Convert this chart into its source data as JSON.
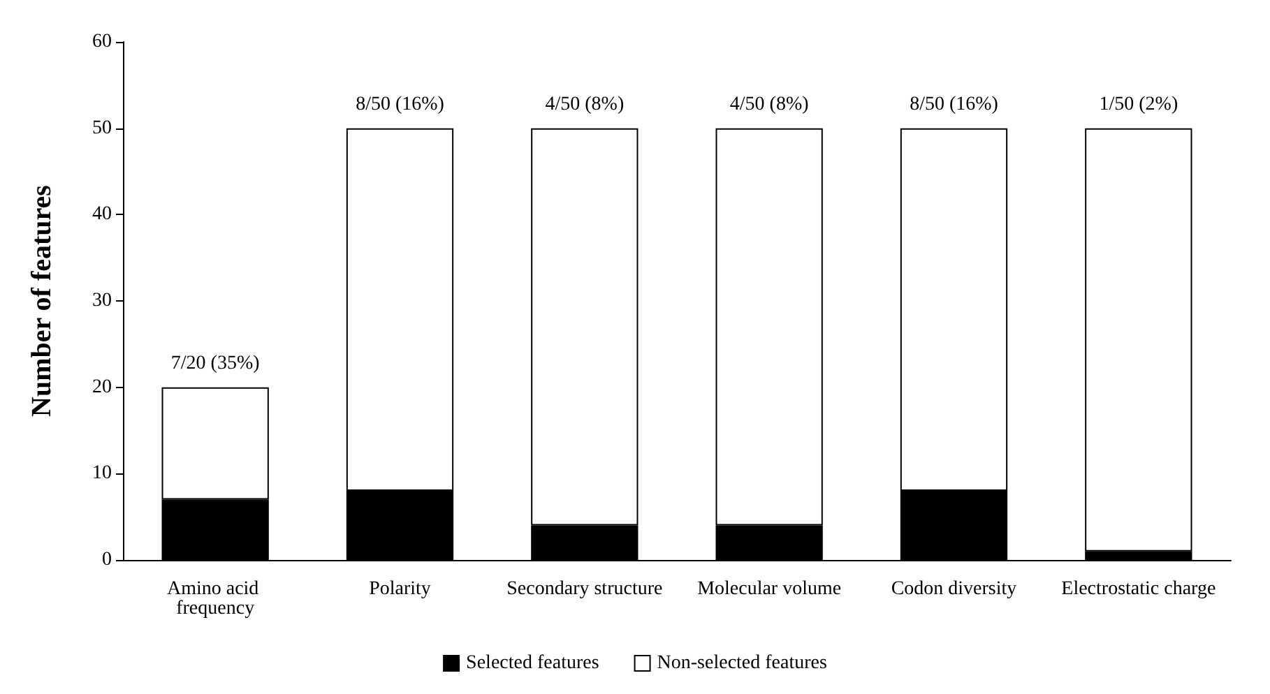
{
  "chart_data": {
    "type": "bar",
    "ylabel": "Number of features",
    "categories": [
      "Amino acid frequency",
      "Polarity",
      "Secondary structure",
      "Molecular volume",
      "Codon diversity",
      "Electrostatic charge"
    ],
    "series": [
      {
        "name": "Selected features",
        "color": "#000000",
        "values": [
          7,
          8,
          4,
          4,
          8,
          1
        ]
      },
      {
        "name": "Non-selected features",
        "color": "#ffffff",
        "values": [
          13,
          42,
          46,
          46,
          42,
          49
        ]
      }
    ],
    "stacked": true,
    "ylim": [
      0,
      60
    ],
    "yticks": [
      0,
      10,
      20,
      30,
      40,
      50,
      60
    ],
    "totals": [
      "7/20 (35%)",
      "8/50 (16%)",
      "4/50 (8%)",
      "4/50 (8%)",
      "8/50 (16%)",
      "1/50 (2%)"
    ],
    "legend": "bottom"
  }
}
